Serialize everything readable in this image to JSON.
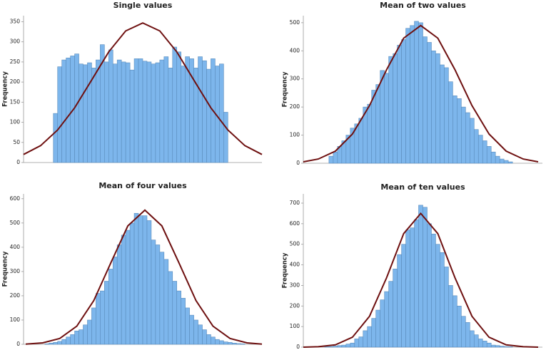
{
  "chart_data": [
    {
      "type": "histogram",
      "title": "Single values",
      "y_label": "Frequency",
      "color": "#7db6ec",
      "edge_color": "#5a8cbc",
      "bins": [
        7,
        8,
        9,
        10,
        11,
        12,
        13,
        14,
        15,
        16,
        17,
        18,
        19,
        20,
        21,
        22,
        23,
        24,
        25,
        26,
        27,
        28,
        29,
        30,
        31,
        32,
        33,
        34,
        35,
        36,
        37,
        38,
        39,
        40,
        41,
        42,
        43,
        44,
        45,
        46,
        47,
        48
      ],
      "counts": [
        122,
        238,
        255,
        260,
        265,
        270,
        245,
        243,
        248,
        235,
        255,
        293,
        250,
        280,
        245,
        255,
        250,
        248,
        230,
        258,
        258,
        252,
        250,
        245,
        248,
        255,
        263,
        235,
        287,
        275,
        240,
        263,
        258,
        235,
        263,
        253,
        232,
        258,
        240,
        245,
        125
      ],
      "curve": {
        "color": "#6e1010",
        "x": [
          0,
          4,
          8,
          12,
          16,
          20,
          24,
          28,
          32,
          36,
          40,
          44,
          48,
          52,
          56
        ],
        "values": [
          20,
          42,
          81,
          136,
          205,
          275,
          327,
          347,
          327,
          275,
          205,
          136,
          81,
          42,
          20
        ]
      },
      "xlim": [
        0,
        56
      ],
      "ylim": [
        0,
        365
      ],
      "yticks": [
        0,
        50,
        100,
        150,
        200,
        250,
        300,
        350
      ]
    },
    {
      "type": "histogram",
      "title": "Mean of two values",
      "y_label": "Frequency",
      "color": "#7db6ec",
      "edge_color": "#5a8cbc",
      "bins": [
        6,
        7,
        8,
        9,
        10,
        11,
        12,
        13,
        14,
        15,
        16,
        17,
        18,
        19,
        20,
        21,
        22,
        23,
        24,
        25,
        26,
        27,
        28,
        29,
        30,
        31,
        32,
        33,
        34,
        35,
        36,
        37,
        38,
        39,
        40,
        41,
        42,
        43,
        44,
        45,
        46,
        47,
        48,
        49
      ],
      "counts": [
        25,
        40,
        60,
        80,
        100,
        125,
        140,
        160,
        200,
        210,
        260,
        280,
        330,
        320,
        380,
        390,
        420,
        440,
        480,
        490,
        505,
        500,
        450,
        430,
        400,
        390,
        350,
        340,
        290,
        240,
        230,
        200,
        180,
        160,
        120,
        100,
        80,
        60,
        40,
        25,
        15,
        10,
        5
      ],
      "curve": {
        "color": "#6e1010",
        "x": [
          0,
          3.5,
          7.5,
          11.5,
          15.5,
          19.5,
          23.5,
          27.5,
          31.5,
          35.5,
          39.5,
          43.5,
          47.5,
          51.5,
          55
        ],
        "values": [
          5,
          15,
          43,
          104,
          205,
          333,
          445,
          490,
          445,
          333,
          205,
          104,
          43,
          15,
          5
        ]
      },
      "xlim": [
        0,
        56
      ],
      "ylim": [
        0,
        525
      ],
      "yticks": [
        0,
        100,
        200,
        300,
        400,
        500
      ]
    },
    {
      "type": "histogram",
      "title": "Mean of four values",
      "y_label": "Frequency",
      "color": "#7db6ec",
      "edge_color": "#5a8cbc",
      "bins": [
        5,
        6,
        7,
        8,
        9,
        10,
        11,
        12,
        13,
        14,
        15,
        16,
        17,
        18,
        19,
        20,
        21,
        22,
        23,
        24,
        25,
        26,
        27,
        28,
        29,
        30,
        31,
        32,
        33,
        34,
        35,
        36,
        37,
        38,
        39,
        40,
        41,
        42,
        43,
        44,
        45,
        46,
        47,
        48,
        49,
        50,
        51,
        52
      ],
      "counts": [
        2,
        5,
        8,
        12,
        20,
        30,
        40,
        55,
        60,
        80,
        100,
        150,
        210,
        220,
        260,
        310,
        360,
        410,
        450,
        470,
        500,
        540,
        530,
        530,
        510,
        430,
        410,
        380,
        350,
        300,
        260,
        220,
        190,
        150,
        120,
        100,
        80,
        60,
        40,
        30,
        20,
        15,
        10,
        8,
        5,
        3,
        2
      ],
      "curve": {
        "color": "#6e1010",
        "x": [
          0.5,
          4.5,
          8.5,
          12.5,
          16.5,
          20.5,
          24.5,
          28.5,
          32.5,
          36.5,
          40.5,
          44.5,
          48.5,
          52.5,
          56
        ],
        "values": [
          1,
          6,
          24,
          75,
          180,
          336,
          488,
          553,
          488,
          336,
          180,
          75,
          24,
          6,
          1
        ]
      },
      "xlim": [
        0,
        56
      ],
      "ylim": [
        0,
        620
      ],
      "yticks": [
        0,
        100,
        200,
        300,
        400,
        500,
        600
      ]
    },
    {
      "type": "histogram",
      "title": "Mean of ten values",
      "y_label": "Frequency",
      "color": "#7db6ec",
      "edge_color": "#5a8cbc",
      "bins": [
        5,
        6,
        7,
        8,
        9,
        10,
        11,
        12,
        13,
        14,
        15,
        16,
        17,
        18,
        19,
        20,
        21,
        22,
        23,
        24,
        25,
        26,
        27,
        28,
        29,
        30,
        31,
        32,
        33,
        34,
        35,
        36,
        37,
        38,
        39,
        40,
        41,
        42,
        43,
        44,
        45,
        46,
        47,
        48,
        49
      ],
      "counts": [
        2,
        3,
        5,
        8,
        10,
        15,
        20,
        40,
        50,
        80,
        100,
        140,
        180,
        230,
        270,
        320,
        380,
        450,
        500,
        570,
        580,
        620,
        690,
        680,
        600,
        550,
        500,
        460,
        390,
        300,
        250,
        200,
        150,
        120,
        80,
        60,
        40,
        30,
        20,
        10,
        8,
        5,
        3,
        2
      ],
      "curve": {
        "color": "#6e1010",
        "x": [
          0,
          3.5,
          7.5,
          11.5,
          15.5,
          19.5,
          23.5,
          27.5,
          31.5,
          35.5,
          39.5,
          43.5,
          47.5,
          51.5,
          55
        ],
        "values": [
          0,
          2,
          11,
          48,
          150,
          338,
          552,
          650,
          552,
          338,
          150,
          48,
          11,
          2,
          0
        ]
      },
      "xlim": [
        0,
        56
      ],
      "ylim": [
        0,
        745
      ],
      "yticks": [
        0,
        100,
        200,
        300,
        400,
        500,
        600,
        700
      ]
    }
  ]
}
